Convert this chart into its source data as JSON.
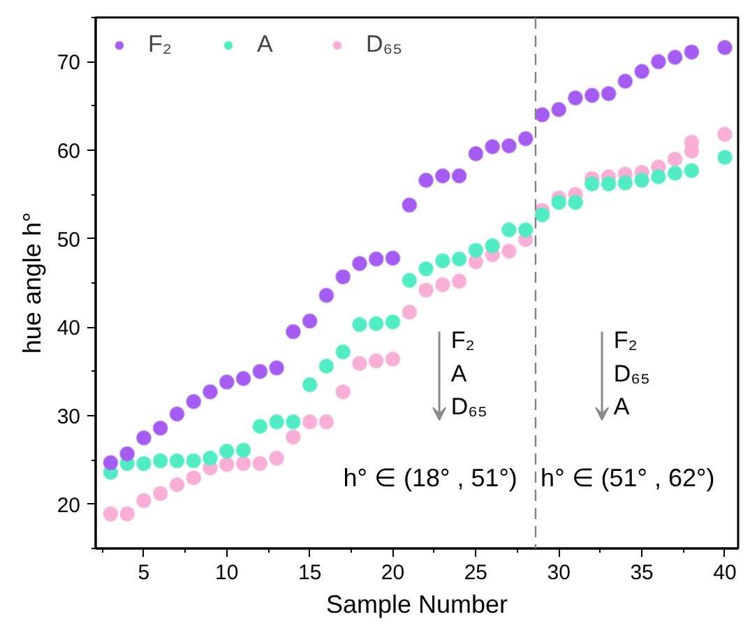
{
  "chart_data": {
    "type": "scatter",
    "xlabel": "Sample Number",
    "ylabel": "hue angle h°",
    "xlim": [
      2.1,
      40.8
    ],
    "ylim": [
      15,
      75
    ],
    "xticks": [
      5,
      10,
      15,
      20,
      25,
      30,
      35,
      40
    ],
    "yticks": [
      20,
      30,
      40,
      50,
      60,
      70
    ],
    "marker": "circle",
    "legend": "top left",
    "grid": false,
    "x": [
      3,
      4,
      5,
      6,
      7,
      8,
      9,
      10,
      11,
      12,
      13,
      14,
      15,
      16,
      17,
      18,
      19,
      20,
      21,
      22,
      23,
      24,
      25,
      26,
      27,
      28,
      29,
      30,
      31,
      32,
      33,
      34,
      35,
      36,
      37,
      38,
      40
    ],
    "series": [
      {
        "name": "F₂",
        "color": "#a55cf2",
        "values": [
          24.7,
          25.7,
          27.5,
          28.6,
          30.2,
          31.6,
          32.7,
          33.8,
          34.2,
          35.0,
          35.4,
          39.5,
          40.7,
          43.6,
          45.7,
          47.2,
          47.7,
          47.8,
          53.8,
          56.6,
          57.1,
          57.1,
          59.6,
          60.4,
          60.5,
          61.3,
          64.0,
          64.6,
          65.9,
          66.2,
          66.4,
          67.8,
          68.9,
          70.0,
          70.5,
          71.1,
          71.6
        ]
      },
      {
        "name": "A",
        "color": "#52ecc4",
        "values": [
          23.6,
          24.6,
          24.6,
          24.9,
          24.9,
          24.9,
          25.2,
          26.0,
          26.1,
          28.8,
          29.3,
          29.3,
          33.5,
          35.6,
          37.2,
          40.3,
          40.4,
          40.6,
          45.3,
          46.6,
          47.5,
          47.7,
          48.7,
          49.2,
          51.0,
          51.0,
          52.7,
          54.1,
          54.1,
          56.2,
          56.2,
          56.3,
          56.6,
          57.0,
          57.4,
          57.7,
          59.2
        ]
      },
      {
        "name": "D₆₅",
        "color": "#f9aed6",
        "x": [
          3,
          4,
          5,
          6,
          7,
          8,
          9,
          10,
          11,
          12,
          13,
          14,
          15,
          16,
          17,
          18,
          19,
          20,
          21,
          22,
          23,
          24,
          25,
          26,
          27,
          28,
          29,
          30,
          31,
          32,
          33,
          34,
          35,
          36,
          37,
          38,
          38,
          40
        ],
        "values": [
          18.9,
          18.9,
          20.4,
          21.2,
          22.2,
          23.0,
          24.1,
          24.5,
          24.6,
          24.6,
          25.2,
          27.6,
          29.3,
          29.3,
          32.7,
          35.9,
          36.2,
          36.4,
          41.7,
          44.2,
          44.8,
          45.2,
          47.4,
          48.2,
          48.6,
          49.9,
          53.2,
          54.6,
          55.0,
          56.8,
          57.0,
          57.3,
          57.5,
          58.1,
          59.0,
          59.9,
          60.9,
          61.8
        ]
      }
    ],
    "ref_lines": [
      {
        "axis": "x",
        "value": 28.6,
        "color": "#808080",
        "line_style": "dashed"
      }
    ],
    "annotations": [
      "F₂\nA\nD₆₅",
      "F₂\nD₆₅\nA",
      "h° ∈ (18° , 51°)",
      "h° ∈ (51° , 62°)"
    ]
  }
}
